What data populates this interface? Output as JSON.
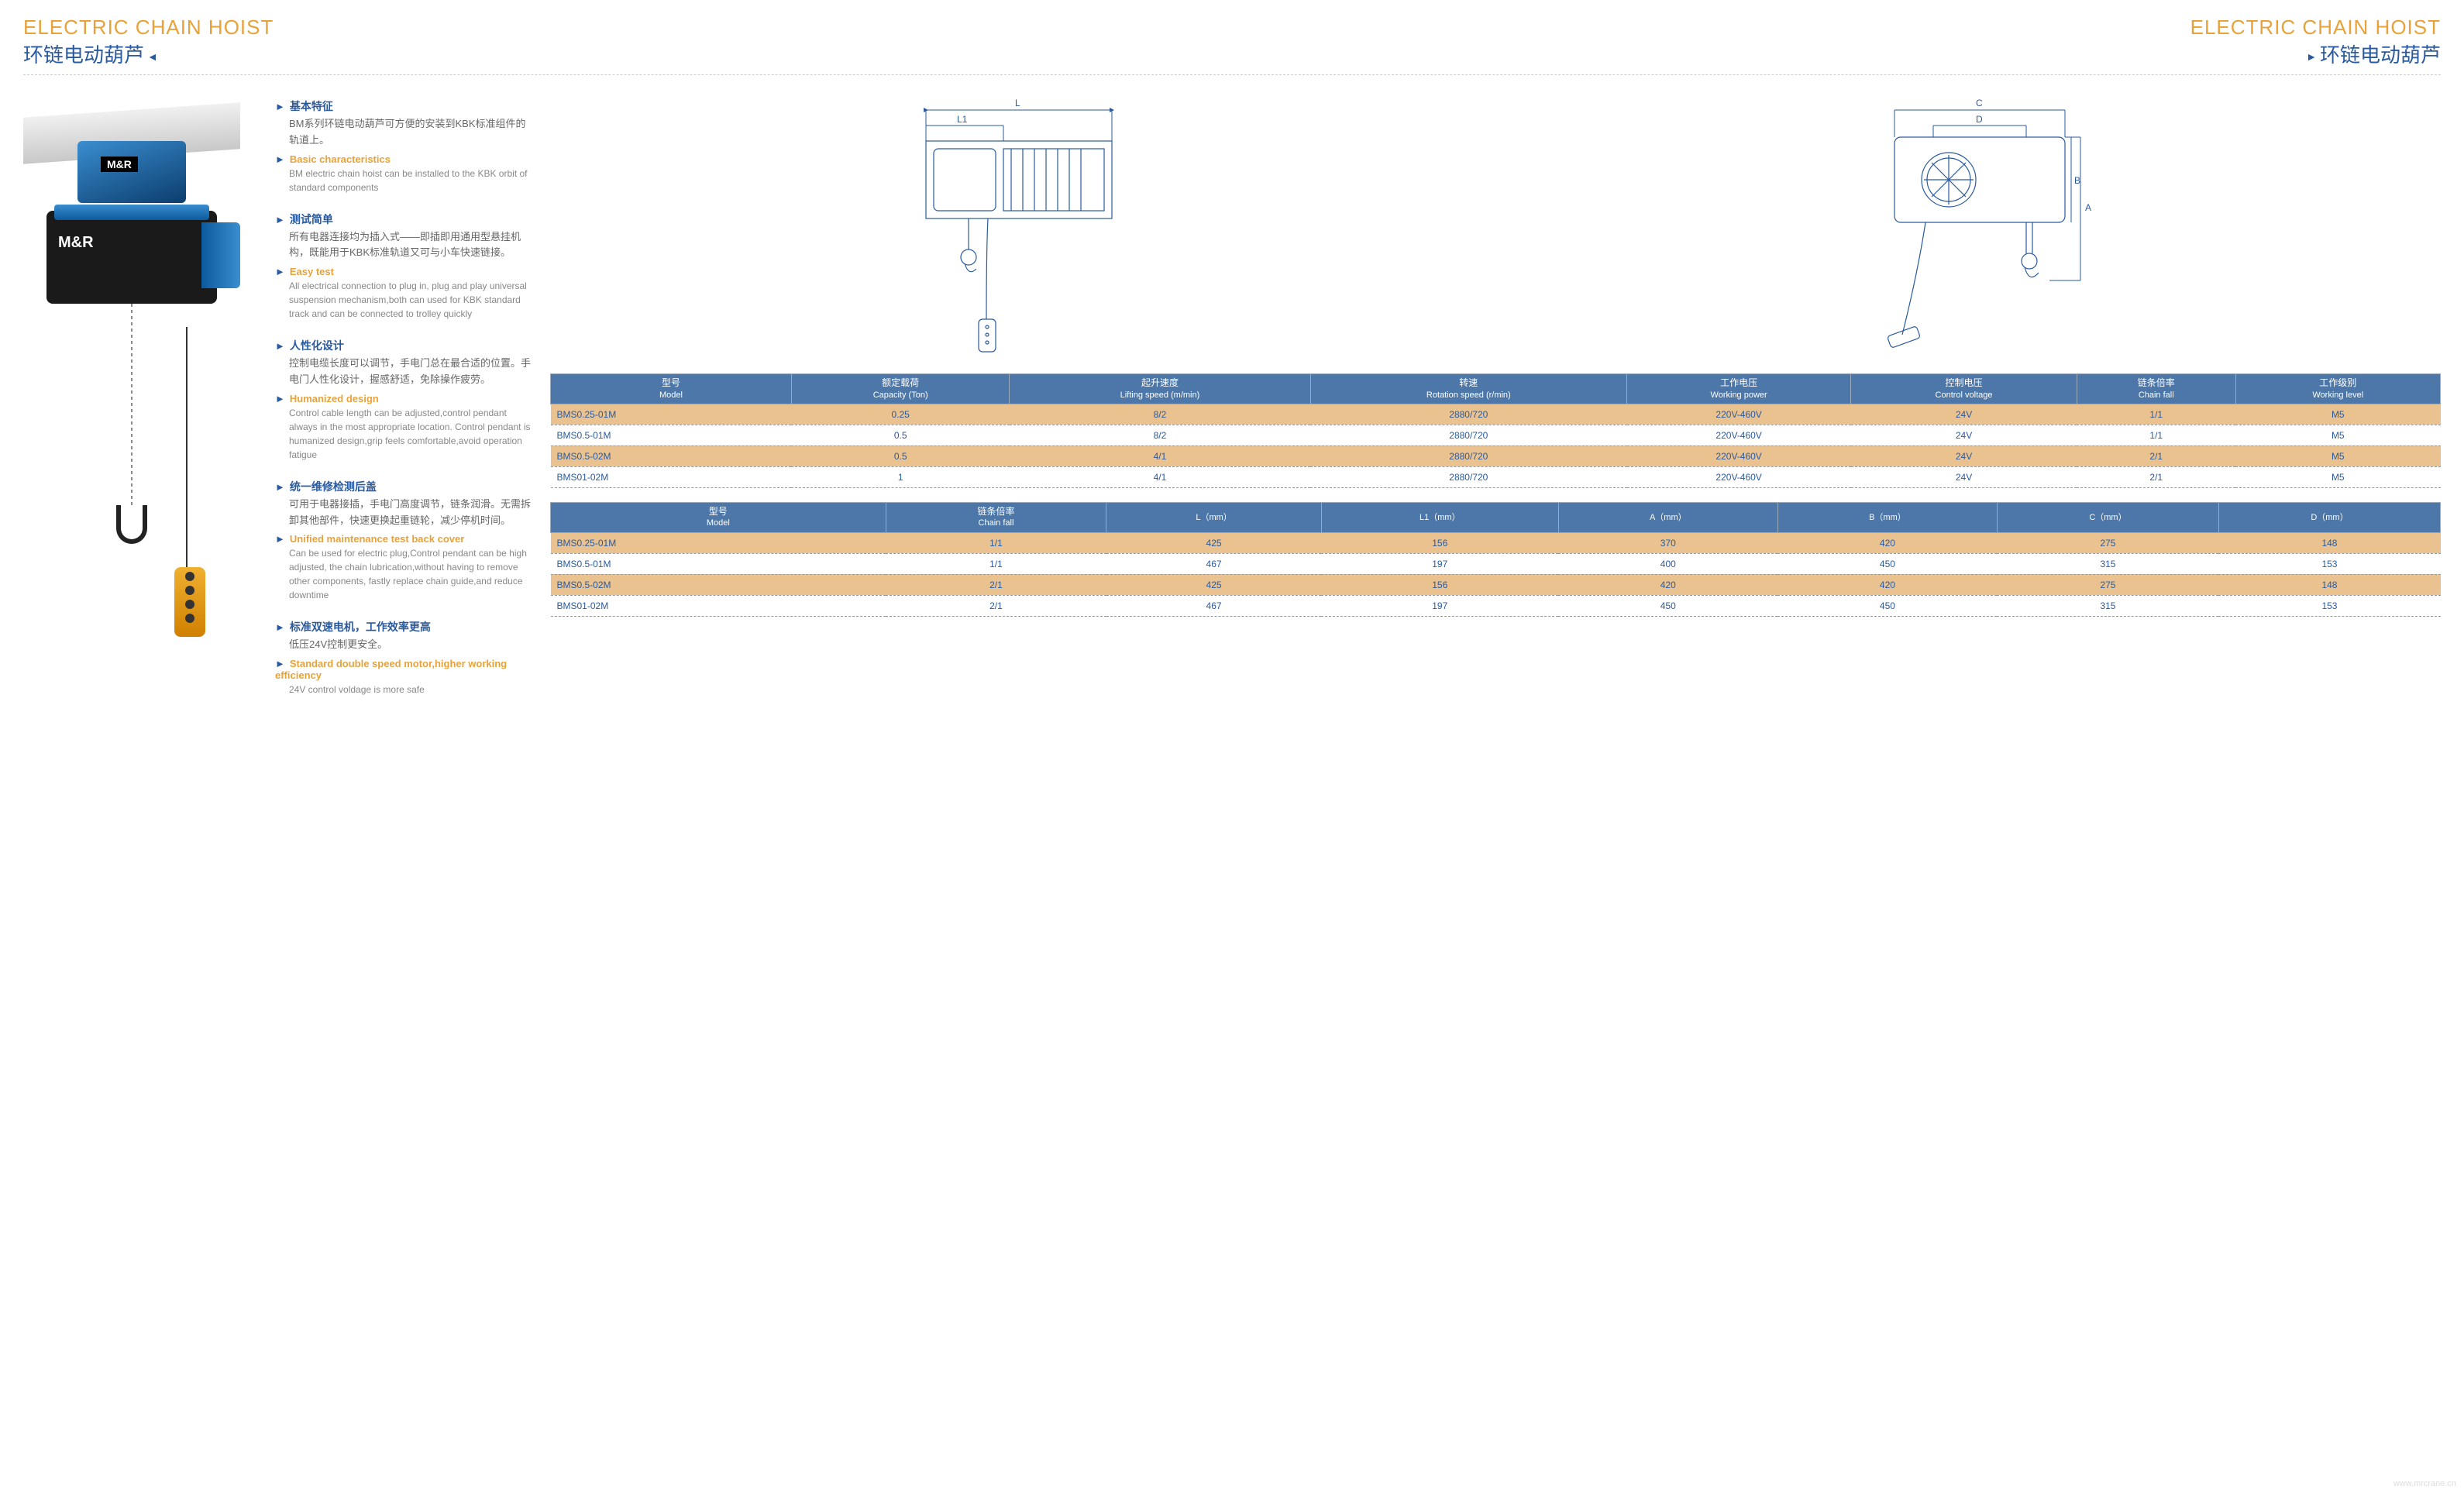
{
  "header": {
    "title_en": "ELECTRIC CHAIN HOIST",
    "title_cn": "环链电动葫芦"
  },
  "product_labels": {
    "brand": "M&R"
  },
  "features": [
    {
      "cn_title": "基本特征",
      "cn_body": "BM系列环链电动葫芦可方便的安装到KBK标准组件的轨道上。",
      "en_title": "Basic characteristics",
      "en_body": "BM electric chain hoist can be installed to the KBK orbit of standard components"
    },
    {
      "cn_title": "测试简单",
      "cn_body": "所有电器连接均为插入式——即插即用通用型悬挂机构，既能用于KBK标准轨道又可与小车快速链接。",
      "en_title": "Easy test",
      "en_body": "All electrical connection to plug in, plug and play universal suspension mechanism,both can used for KBK standard track and can be connected to trolley quickly"
    },
    {
      "cn_title": "人性化设计",
      "cn_body": "控制电缆长度可以调节，手电门总在最合适的位置。手电门人性化设计，握感舒适，免除操作疲劳。",
      "en_title": "Humanized design",
      "en_body": "Control cable length can be adjusted,control pendant always in the most appropriate location. Control pendant is humanized design,grip feels comfortable,avoid operation fatigue"
    },
    {
      "cn_title": "统一维修检测后盖",
      "cn_body": "可用于电器接插，手电门高度调节，链条润滑。无需拆卸其他部件，快速更换起重链轮，减少停机时间。",
      "en_title": "Unified maintenance test back cover",
      "en_body": "Can be used for electric plug,Control pendant can be high adjusted, the chain lubrication,without having to remove other components, fastly replace chain guide,and reduce downtime"
    },
    {
      "cn_title": "标准双速电机，工作效率更高",
      "cn_body": "低压24V控制更安全。",
      "en_title": "Standard double speed motor,higher working efficiency",
      "en_body": "24V control voldage is more safe"
    }
  ],
  "drawings": {
    "labels": {
      "L": "L",
      "L1": "L1",
      "A": "A",
      "B": "B",
      "C": "C",
      "D": "D"
    }
  },
  "table1": {
    "headers": [
      {
        "cn": "型号",
        "en": "Model"
      },
      {
        "cn": "额定载荷",
        "en": "Capacity (Ton)"
      },
      {
        "cn": "起升速度",
        "en": "Lifting speed (m/min)"
      },
      {
        "cn": "转速",
        "en": "Rotation speed (r/min)"
      },
      {
        "cn": "工作电压",
        "en": "Working power"
      },
      {
        "cn": "控制电压",
        "en": "Control voltage"
      },
      {
        "cn": "链条倍率",
        "en": "Chain fall"
      },
      {
        "cn": "工作级别",
        "en": "Working level"
      }
    ],
    "rows": [
      {
        "alt": true,
        "cells": [
          "BMS0.25-01M",
          "0.25",
          "8/2",
          "2880/720",
          "220V-460V",
          "24V",
          "1/1",
          "M5"
        ]
      },
      {
        "alt": false,
        "cells": [
          "BMS0.5-01M",
          "0.5",
          "8/2",
          "2880/720",
          "220V-460V",
          "24V",
          "1/1",
          "M5"
        ]
      },
      {
        "alt": true,
        "cells": [
          "BMS0.5-02M",
          "0.5",
          "4/1",
          "2880/720",
          "220V-460V",
          "24V",
          "2/1",
          "M5"
        ]
      },
      {
        "alt": false,
        "cells": [
          "BMS01-02M",
          "1",
          "4/1",
          "2880/720",
          "220V-460V",
          "24V",
          "2/1",
          "M5"
        ]
      }
    ]
  },
  "table2": {
    "headers": [
      {
        "cn": "型号",
        "en": "Model"
      },
      {
        "cn": "链条倍率",
        "en": "Chain fall"
      },
      {
        "cn": "",
        "en": "L（mm）"
      },
      {
        "cn": "",
        "en": "L1（mm）"
      },
      {
        "cn": "",
        "en": "A（mm）"
      },
      {
        "cn": "",
        "en": "B（mm）"
      },
      {
        "cn": "",
        "en": "C（mm）"
      },
      {
        "cn": "",
        "en": "D（mm）"
      }
    ],
    "rows": [
      {
        "alt": true,
        "cells": [
          "BMS0.25-01M",
          "1/1",
          "425",
          "156",
          "370",
          "420",
          "275",
          "148"
        ]
      },
      {
        "alt": false,
        "cells": [
          "BMS0.5-01M",
          "1/1",
          "467",
          "197",
          "400",
          "450",
          "315",
          "153"
        ]
      },
      {
        "alt": true,
        "cells": [
          "BMS0.5-02M",
          "2/1",
          "425",
          "156",
          "420",
          "420",
          "275",
          "148"
        ]
      },
      {
        "alt": false,
        "cells": [
          "BMS01-02M",
          "2/1",
          "467",
          "197",
          "450",
          "450",
          "315",
          "153"
        ]
      }
    ]
  },
  "watermark": "www.mrcrane.cn",
  "colors": {
    "accent_orange": "#e8a23a",
    "accent_blue": "#2a5a9e",
    "table_header_bg": "#4c77a8",
    "table_alt_bg": "#eac28f",
    "text_gray": "#666"
  }
}
